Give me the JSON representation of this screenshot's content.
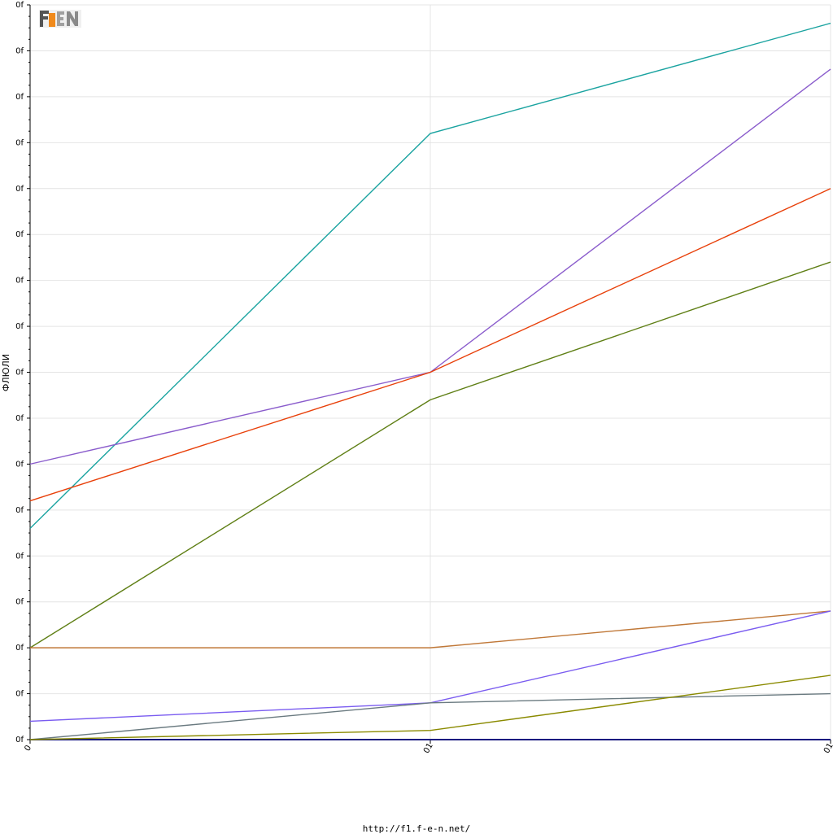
{
  "chart_data": {
    "type": "line",
    "title": "",
    "xlabel": "",
    "ylabel": "ФЛЮЛИ",
    "x": [
      0,
      1,
      2
    ],
    "x_tick_labels": [
      "0",
      "01",
      "01"
    ],
    "y_tick_labels": [
      "0f",
      "0f",
      "0f",
      "0f",
      "0f",
      "0f",
      "0f",
      "0f",
      "0f",
      "0f",
      "0f",
      "0f",
      "0f",
      "0f",
      "0f",
      "0f",
      "0f"
    ],
    "ylim": [
      0,
      16
    ],
    "grid": true,
    "legend": "none",
    "series": [
      {
        "color": "#1aa3a0",
        "values": [
          4.6,
          13.2,
          15.6
        ]
      },
      {
        "color": "#8a5ccc",
        "values": [
          6.0,
          8.0,
          14.6
        ]
      },
      {
        "color": "#e8400a",
        "values": [
          5.2,
          8.0,
          12.0
        ]
      },
      {
        "color": "#5f7f15",
        "values": [
          2.0,
          7.4,
          10.4
        ]
      },
      {
        "color": "#c07838",
        "values": [
          2.0,
          2.0,
          2.8
        ]
      },
      {
        "color": "#7a5cf0",
        "values": [
          0.4,
          0.8,
          2.8
        ]
      },
      {
        "color": "#6a7a80",
        "values": [
          0.0,
          0.8,
          1.0
        ]
      },
      {
        "color": "#8a8a00",
        "values": [
          0.0,
          0.2,
          1.4
        ]
      }
    ]
  },
  "logo": {
    "text": "F1EN"
  },
  "footer": {
    "url": "http://f1.f-e-n.net/"
  }
}
